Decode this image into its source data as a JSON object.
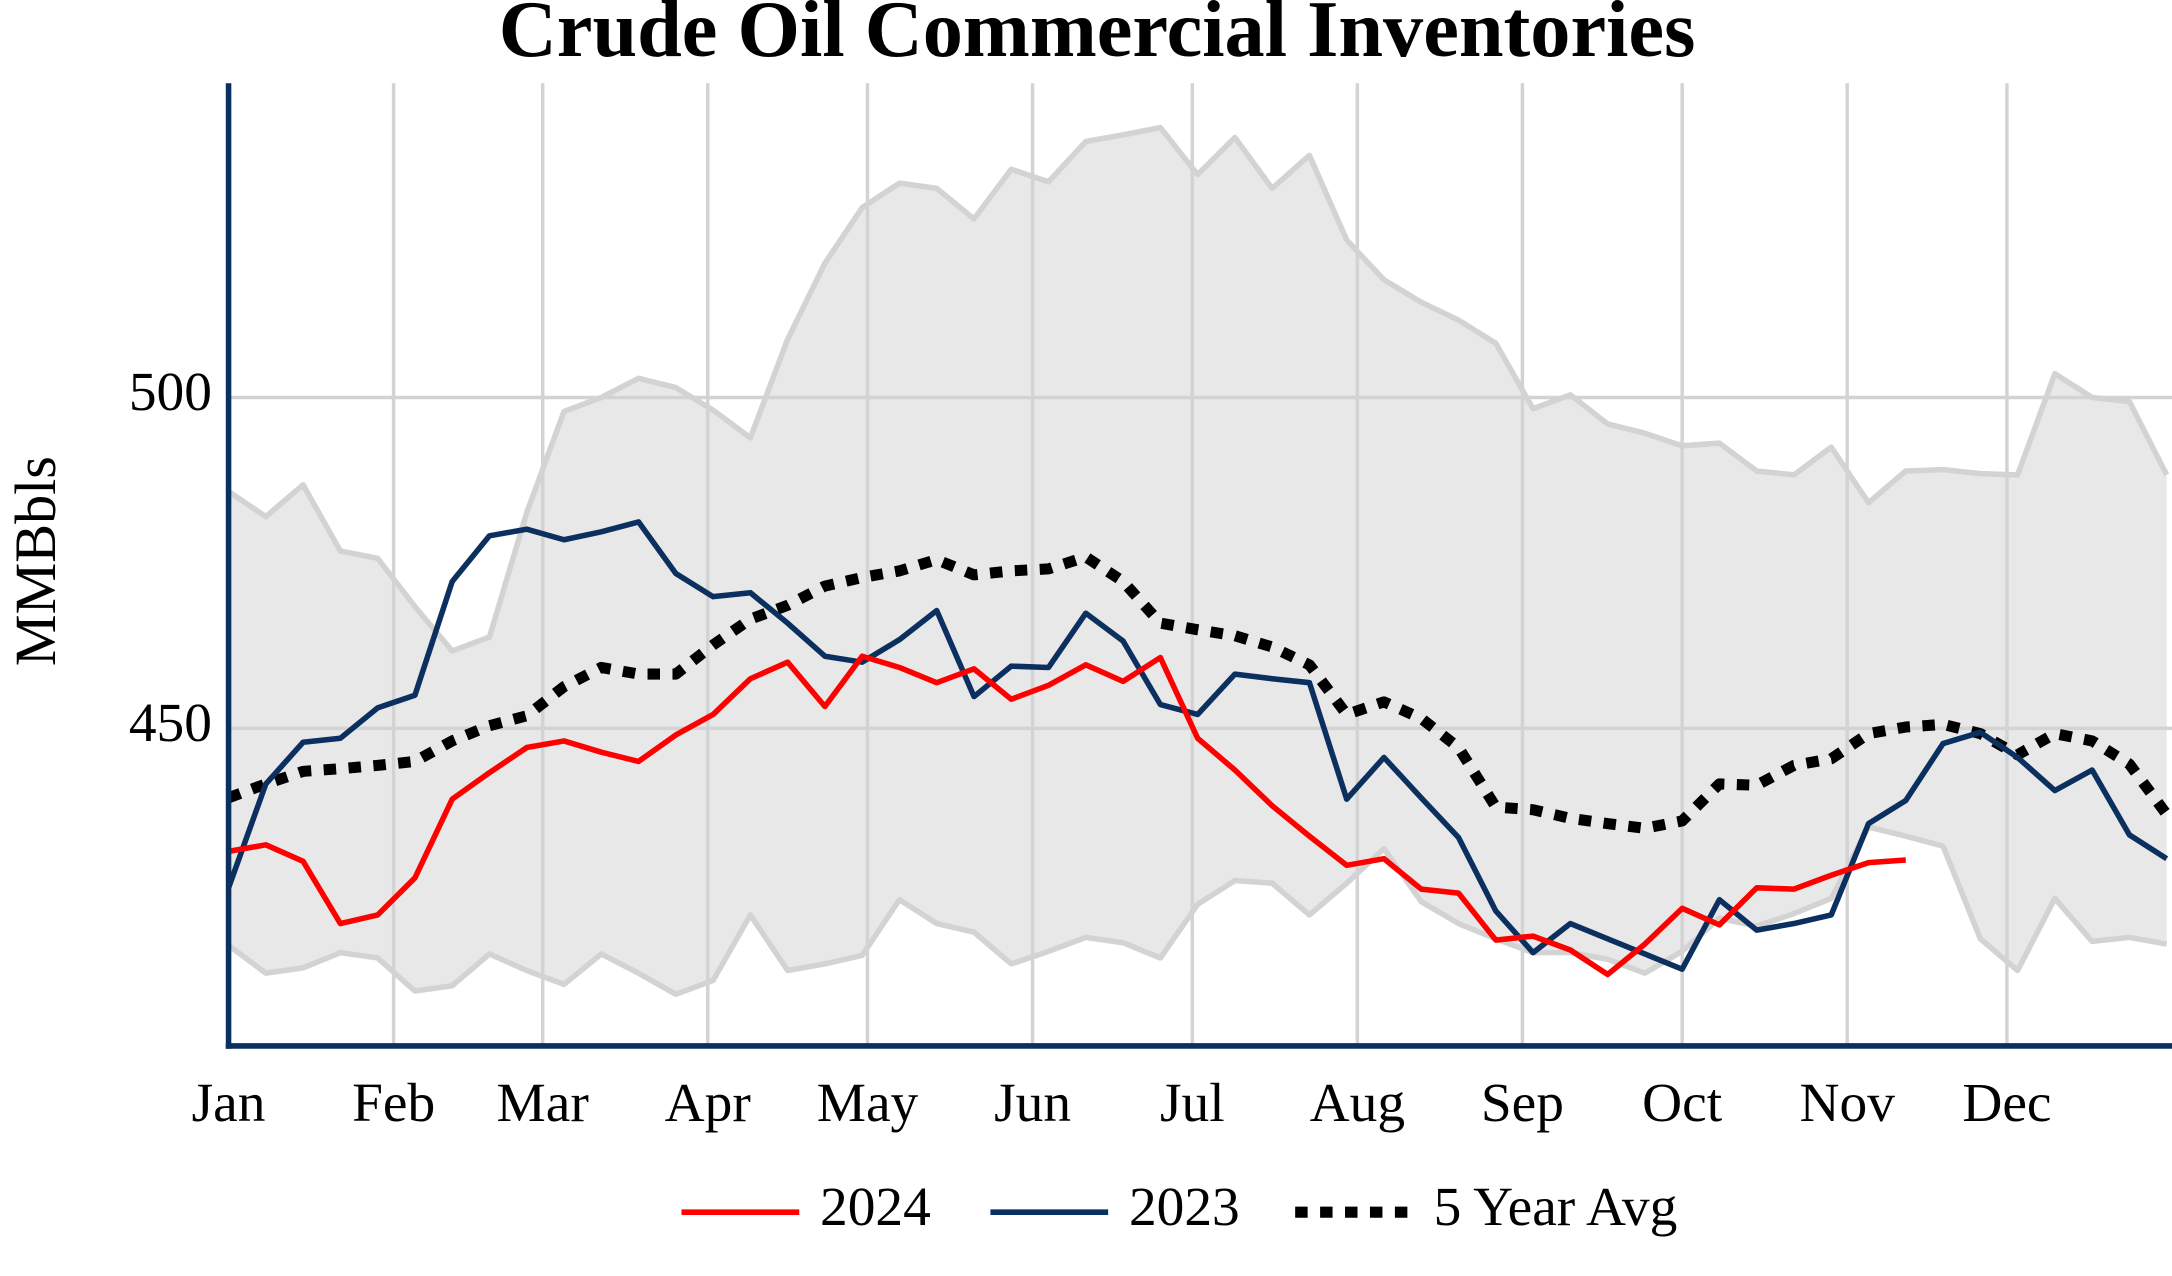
{
  "chart_data": {
    "type": "line",
    "title": "Crude Oil Commercial Inventories",
    "ylabel": "MMBbls",
    "x": [
      1,
      8,
      15,
      22,
      29,
      36,
      43,
      50,
      57,
      64,
      71,
      78,
      85,
      92,
      99,
      106,
      113,
      120,
      127,
      134,
      141,
      148,
      155,
      162,
      169,
      176,
      183,
      190,
      197,
      204,
      211,
      218,
      225,
      232,
      239,
      246,
      253,
      260,
      267,
      274,
      281,
      288,
      295,
      302,
      309,
      316,
      323,
      330,
      337,
      344,
      351,
      358,
      365
    ],
    "xlim": [
      1,
      366
    ],
    "xticks": [
      {
        "value": 1,
        "label": "Jan"
      },
      {
        "value": 32,
        "label": "Feb"
      },
      {
        "value": 60,
        "label": "Mar"
      },
      {
        "value": 91,
        "label": "Apr"
      },
      {
        "value": 121,
        "label": "May"
      },
      {
        "value": 152,
        "label": "Jun"
      },
      {
        "value": 182,
        "label": "Jul"
      },
      {
        "value": 213,
        "label": "Aug"
      },
      {
        "value": 244,
        "label": "Sep"
      },
      {
        "value": 274,
        "label": "Oct"
      },
      {
        "value": 305,
        "label": "Nov"
      },
      {
        "value": 335,
        "label": "Dec"
      }
    ],
    "ylim": [
      402,
      547.5
    ],
    "yticks": [
      450,
      500
    ],
    "grid": true,
    "band": {
      "color": "#e8e8e8",
      "edge_color": "#d3d3d3",
      "upper": [
        485.8,
        482.0,
        486.8,
        476.8,
        475.7,
        468.4,
        461.7,
        463.8,
        482.6,
        497.9,
        500.0,
        502.9,
        501.5,
        498.1,
        493.9,
        508.8,
        520.3,
        528.7,
        532.4,
        531.6,
        527.0,
        534.5,
        532.6,
        538.7,
        539.7,
        540.8,
        533.7,
        539.3,
        531.6,
        536.6,
        523.8,
        517.8,
        514.4,
        511.7,
        508.2,
        498.3,
        500.4,
        496.0,
        494.6,
        492.7,
        493.1,
        488.9,
        488.3,
        492.5,
        484.1,
        488.9,
        489.1,
        488.5,
        488.3,
        503.6,
        500.0,
        499.4,
        488.3
      ],
      "lower": [
        417.2,
        413.0,
        413.8,
        416.1,
        415.3,
        410.3,
        411.1,
        415.9,
        413.4,
        411.3,
        415.9,
        413.0,
        409.8,
        411.9,
        421.8,
        413.4,
        414.4,
        415.7,
        424.1,
        420.5,
        419.2,
        414.4,
        416.3,
        418.4,
        417.6,
        415.3,
        423.4,
        427.0,
        426.6,
        421.8,
        426.6,
        431.8,
        423.8,
        420.5,
        418.2,
        416.1,
        416.1,
        415.1,
        413.0,
        416.3,
        421.3,
        420.1,
        422.0,
        424.3,
        435.1,
        433.7,
        432.2,
        418.2,
        413.4,
        424.3,
        417.8,
        418.4,
        417.4
      ]
    },
    "series": [
      {
        "name": "2024",
        "color": "#ff0000",
        "line_style": "solid",
        "values": [
          431.4,
          432.4,
          429.9,
          420.5,
          421.8,
          427.4,
          439.3,
          443.3,
          447.1,
          448.1,
          446.4,
          445.0,
          449.0,
          452.1,
          457.5,
          460.0,
          453.3,
          460.9,
          459.2,
          456.9,
          459.0,
          454.4,
          456.5,
          459.6,
          457.1,
          460.7,
          448.5,
          443.7,
          438.3,
          433.7,
          429.3,
          430.3,
          425.7,
          425.1,
          418.0,
          418.6,
          416.5,
          412.8,
          417.4,
          422.8,
          420.3,
          425.9,
          425.7,
          427.8,
          429.7,
          430.1,
          null,
          null,
          null,
          null,
          null,
          null,
          null
        ]
      },
      {
        "name": "2023",
        "color": "#0b2f5e",
        "line_style": "solid",
        "values": [
          425.9,
          441.6,
          447.9,
          448.5,
          453.1,
          455.0,
          472.2,
          479.1,
          480.1,
          478.5,
          479.7,
          481.2,
          473.4,
          469.9,
          470.5,
          465.9,
          460.9,
          460.0,
          463.4,
          467.8,
          454.8,
          459.4,
          459.2,
          467.4,
          463.2,
          453.6,
          452.1,
          458.2,
          457.5,
          456.9,
          439.3,
          445.6,
          439.5,
          433.5,
          422.4,
          416.1,
          420.5,
          418.2,
          415.9,
          413.6,
          424.1,
          419.5,
          420.5,
          421.8,
          435.6,
          439.1,
          447.7,
          449.4,
          445.6,
          440.6,
          443.7,
          433.9,
          430.3
        ]
      },
      {
        "name": "5 Year Avg",
        "color": "#000000",
        "line_style": "dotted",
        "values": [
          439.5,
          441.6,
          443.5,
          443.9,
          444.4,
          445.0,
          448.1,
          450.4,
          451.9,
          456.3,
          459.2,
          458.2,
          458.2,
          462.6,
          466.5,
          468.6,
          471.5,
          472.8,
          473.8,
          475.5,
          473.2,
          473.8,
          474.1,
          475.9,
          472.2,
          465.9,
          464.9,
          464.0,
          462.3,
          459.6,
          452.1,
          454.0,
          451.5,
          447.1,
          438.1,
          437.7,
          436.4,
          435.6,
          434.9,
          436.0,
          441.6,
          441.4,
          444.4,
          445.4,
          449.2,
          450.2,
          450.6,
          449.2,
          446.0,
          449.2,
          448.1,
          444.6,
          437.0
        ]
      }
    ]
  }
}
